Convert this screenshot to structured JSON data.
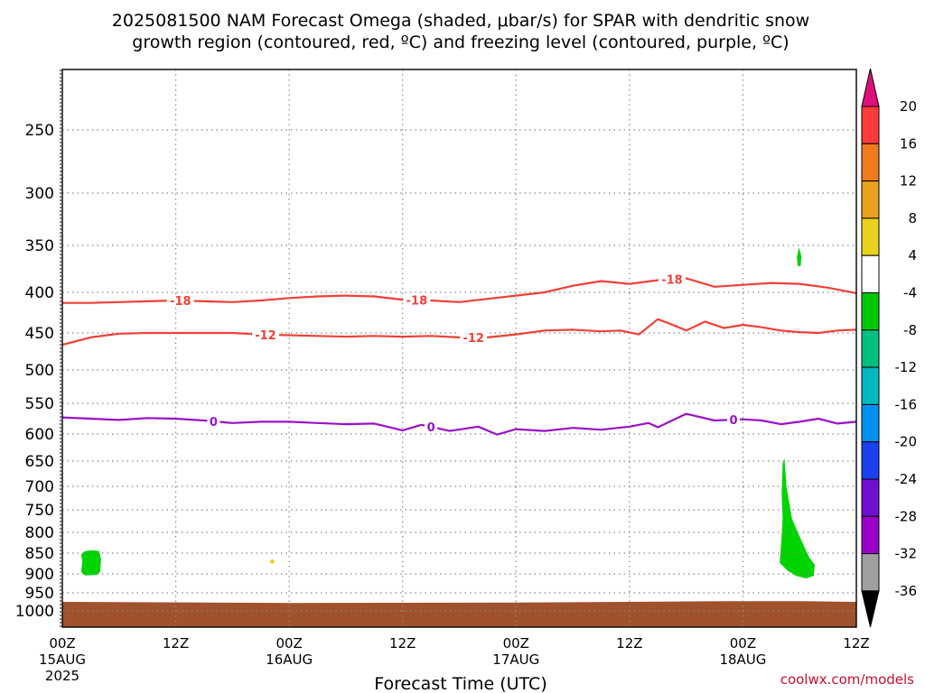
{
  "title": {
    "line1": "2025081500 NAM Forecast Omega (shaded, μbar/s) for SPAR with dendritic snow",
    "line2": "growth region (contoured, red, ºC) and freezing level (contoured, purple, ºC)"
  },
  "credit": "coolwx.com/models",
  "colors": {
    "dendritic_contour": "#ef4136",
    "freezing_contour": "#9b10c8",
    "ground": "#a0522d",
    "omega_green": "#00d400",
    "omega_yellow": "#e8d21e",
    "grid": "#888888"
  },
  "chart_data": {
    "type": "time-height cross-section",
    "xlabel": "Forecast Time (UTC)",
    "ylabel": "",
    "x_ticks": [
      {
        "hour": 0,
        "label": "00Z",
        "sub1": "15AUG",
        "sub2": "2025"
      },
      {
        "hour": 12,
        "label": "12Z",
        "sub1": "",
        "sub2": ""
      },
      {
        "hour": 24,
        "label": "00Z",
        "sub1": "16AUG",
        "sub2": ""
      },
      {
        "hour": 36,
        "label": "12Z",
        "sub1": "",
        "sub2": ""
      },
      {
        "hour": 48,
        "label": "00Z",
        "sub1": "17AUG",
        "sub2": ""
      },
      {
        "hour": 60,
        "label": "12Z",
        "sub1": "",
        "sub2": ""
      },
      {
        "hour": 72,
        "label": "00Z",
        "sub1": "18AUG",
        "sub2": ""
      },
      {
        "hour": 84,
        "label": "12Z",
        "sub1": "",
        "sub2": ""
      }
    ],
    "x_range_hours": [
      0,
      84
    ],
    "y_ticks_hpa": [
      250,
      300,
      350,
      400,
      450,
      500,
      550,
      600,
      650,
      700,
      750,
      800,
      850,
      900,
      950,
      1000
    ],
    "y_range_hpa": [
      200,
      1025
    ],
    "grid": true,
    "colorbar": {
      "ticks": [
        20,
        16,
        12,
        8,
        4,
        -4,
        -8,
        -12,
        -16,
        -20,
        -24,
        -28,
        -32,
        -36
      ],
      "bins": [
        {
          "color": "#ff3b3b"
        },
        {
          "color": "#f07a1e"
        },
        {
          "color": "#e8a21e"
        },
        {
          "color": "#e8d21e"
        },
        {
          "color": "#ffffff"
        },
        {
          "color": "#00c800"
        },
        {
          "color": "#00c080"
        },
        {
          "color": "#00b8c0"
        },
        {
          "color": "#0090f0"
        },
        {
          "color": "#1a40f0"
        },
        {
          "color": "#7010d0"
        },
        {
          "color": "#9a00c8"
        },
        {
          "color": "#a0a0a0"
        }
      ],
      "top_arrow_color": "#e0107a",
      "bottom_arrow_color": "#000000"
    },
    "contours": [
      {
        "name": "-18",
        "color_key": "dendritic_contour",
        "label": "-18",
        "points": [
          [
            0,
            413
          ],
          [
            3,
            413
          ],
          [
            6,
            412
          ],
          [
            9,
            411
          ],
          [
            12,
            410
          ],
          [
            15,
            411
          ],
          [
            18,
            412
          ],
          [
            21,
            410
          ],
          [
            24,
            407
          ],
          [
            27,
            405
          ],
          [
            30,
            404
          ],
          [
            33,
            405
          ],
          [
            36,
            409
          ],
          [
            39,
            410
          ],
          [
            42,
            412
          ],
          [
            45,
            408
          ],
          [
            48,
            404
          ],
          [
            51,
            400
          ],
          [
            54,
            393
          ],
          [
            57,
            388
          ],
          [
            60,
            391
          ],
          [
            63,
            387
          ],
          [
            66,
            385
          ],
          [
            69,
            394
          ],
          [
            72,
            392
          ],
          [
            75,
            390
          ],
          [
            78,
            391
          ],
          [
            81,
            395
          ],
          [
            84,
            401
          ]
        ],
        "label_hours": [
          12.5,
          37.5,
          64.5
        ]
      },
      {
        "name": "-12",
        "color_key": "dendritic_contour",
        "label": "-12",
        "points": [
          [
            0,
            466
          ],
          [
            3,
            456
          ],
          [
            6,
            451
          ],
          [
            9,
            450
          ],
          [
            12,
            450
          ],
          [
            15,
            450
          ],
          [
            18,
            450
          ],
          [
            21,
            452
          ],
          [
            24,
            453
          ],
          [
            27,
            454
          ],
          [
            30,
            455
          ],
          [
            33,
            454
          ],
          [
            36,
            455
          ],
          [
            39,
            454
          ],
          [
            42,
            456
          ],
          [
            45,
            456
          ],
          [
            48,
            452
          ],
          [
            51,
            447
          ],
          [
            54,
            446
          ],
          [
            57,
            448
          ],
          [
            59,
            447
          ],
          [
            61,
            452
          ],
          [
            63,
            433
          ],
          [
            65,
            442
          ],
          [
            66,
            447
          ],
          [
            68,
            436
          ],
          [
            70,
            444
          ],
          [
            72,
            440
          ],
          [
            74,
            443
          ],
          [
            76,
            447
          ],
          [
            78,
            449
          ],
          [
            80,
            450
          ],
          [
            82,
            447
          ],
          [
            84,
            446
          ]
        ],
        "label_hours": [
          21.5,
          43.5
        ]
      },
      {
        "name": "0",
        "color_key": "freezing_contour",
        "label": "0",
        "points": [
          [
            0,
            573
          ],
          [
            3,
            575
          ],
          [
            6,
            577
          ],
          [
            9,
            574
          ],
          [
            12,
            575
          ],
          [
            15,
            578
          ],
          [
            18,
            582
          ],
          [
            21,
            580
          ],
          [
            24,
            580
          ],
          [
            27,
            582
          ],
          [
            30,
            584
          ],
          [
            33,
            583
          ],
          [
            36,
            594
          ],
          [
            38,
            585
          ],
          [
            41,
            595
          ],
          [
            44,
            588
          ],
          [
            46,
            601
          ],
          [
            48,
            592
          ],
          [
            51,
            595
          ],
          [
            54,
            590
          ],
          [
            57,
            593
          ],
          [
            60,
            588
          ],
          [
            62,
            582
          ],
          [
            63,
            589
          ],
          [
            66,
            567
          ],
          [
            69,
            578
          ],
          [
            72,
            576
          ],
          [
            74,
            578
          ],
          [
            76,
            584
          ],
          [
            78,
            580
          ],
          [
            80,
            575
          ],
          [
            82,
            583
          ],
          [
            84,
            580
          ]
        ],
        "label_hours": [
          16,
          39,
          71
        ]
      }
    ],
    "shaded": [
      {
        "name": "omega-green-low-left",
        "color_key": "omega_green",
        "polygon": [
          [
            2.0,
            853
          ],
          [
            2.4,
            845
          ],
          [
            3.2,
            843
          ],
          [
            3.9,
            845
          ],
          [
            4.1,
            865
          ],
          [
            4.0,
            895
          ],
          [
            3.6,
            903
          ],
          [
            2.4,
            904
          ],
          [
            2.0,
            895
          ],
          [
            2.1,
            870
          ]
        ]
      },
      {
        "name": "omega-yellow-dot",
        "color_key": "omega_yellow",
        "polygon": [
          [
            21.9,
            870
          ],
          [
            22.2,
            864
          ],
          [
            22.5,
            870
          ],
          [
            22.2,
            877
          ]
        ]
      },
      {
        "name": "omega-green-upper-right",
        "color_key": "omega_green",
        "polygon": [
          [
            77.7,
            362
          ],
          [
            77.95,
            352
          ],
          [
            78.2,
            362
          ],
          [
            78.1,
            372
          ],
          [
            77.8,
            372
          ]
        ]
      },
      {
        "name": "omega-green-low-right",
        "color_key": "omega_green",
        "polygon": [
          [
            76.2,
            655
          ],
          [
            76.4,
            645
          ],
          [
            76.6,
            700
          ],
          [
            77.2,
            770
          ],
          [
            78.2,
            820
          ],
          [
            79.0,
            860
          ],
          [
            79.6,
            878
          ],
          [
            79.5,
            905
          ],
          [
            78.7,
            912
          ],
          [
            77.6,
            905
          ],
          [
            76.7,
            892
          ],
          [
            75.9,
            873
          ],
          [
            76.0,
            840
          ],
          [
            76.2,
            770
          ],
          [
            76.1,
            715
          ]
        ]
      }
    ],
    "ground_top_hpa": [
      [
        0,
        975
      ],
      [
        8,
        976
      ],
      [
        24,
        978
      ],
      [
        48,
        977
      ],
      [
        60,
        975
      ],
      [
        70,
        973
      ],
      [
        78,
        973
      ],
      [
        84,
        975
      ]
    ]
  }
}
